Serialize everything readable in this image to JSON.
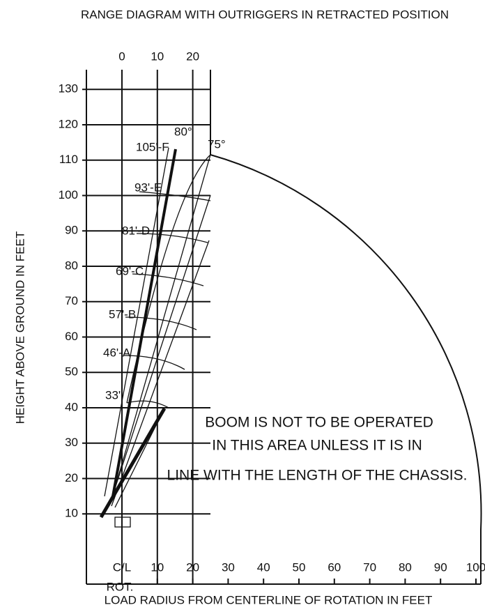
{
  "title": "RANGE DIAGRAM WITH OUTRIGGERS IN RETRACTED POSITION",
  "y_axis_label": "HEIGHT ABOVE GROUND IN FEET",
  "x_axis_label": "LOAD RADIUS FROM CENTERLINE OF ROTATION IN FEET",
  "x_axis_sublabel": "ROT.",
  "y_ticks": [
    10,
    20,
    30,
    40,
    50,
    60,
    70,
    80,
    90,
    100,
    110,
    120,
    130
  ],
  "top_ticks": [
    0,
    10,
    20
  ],
  "x_ticks": [
    {
      "value": 0,
      "label": "C/L"
    },
    10,
    20,
    30,
    40,
    50,
    60,
    70,
    80,
    90,
    100
  ],
  "boom_labels": [
    "105'-F",
    "93'-E",
    "81'-D",
    "69'-C",
    "57'-B",
    "46'-A",
    "33'"
  ],
  "angle_labels": [
    "80°",
    "75°"
  ],
  "note": [
    "BOOM IS NOT TO BE OPERATED",
    "IN THIS AREA UNLESS IT IS IN",
    "LINE WITH THE LENGTH OF THE CHASSIS."
  ]
}
